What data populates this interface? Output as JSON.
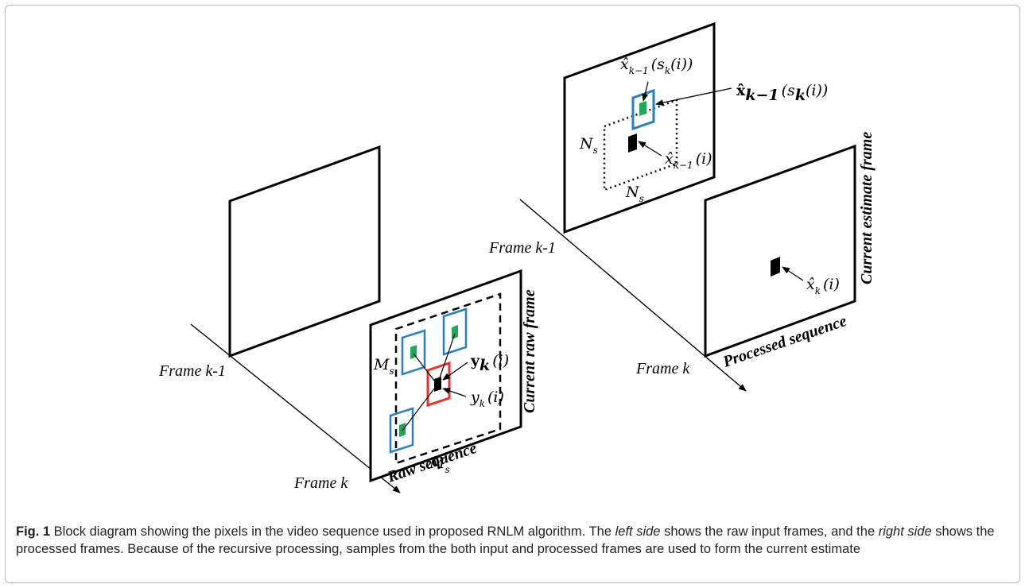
{
  "left": {
    "frame_prev_label": "Frame k-1",
    "frame_curr_label": "Frame k",
    "current_label": "Current raw frame",
    "sequence_label": "Raw sequence",
    "window_h_label": "M",
    "window_h_sub": "s",
    "window_w_label": "M",
    "window_w_sub": "s",
    "patch_label_main": "y",
    "patch_label_sub": "k",
    "patch_label_arg": "(i)",
    "pixel_label_main": "y",
    "pixel_label_sub": "k",
    "pixel_label_arg": "(i)"
  },
  "right": {
    "frame_prev_label": "Frame k-1",
    "frame_curr_label": "Frame k",
    "current_label": "Current estimate frame",
    "sequence_label": "Processed sequence",
    "window_h_label": "N",
    "window_h_sub": "s",
    "window_w_label": "N",
    "window_w_sub": "s",
    "top_label_main": "x̂",
    "top_label_sub": "k−1",
    "top_label_arg": "(s",
    "top_label_arg_sub": "k",
    "top_label_arg_end": "(i))",
    "patch_label_main": "x̂",
    "patch_label_sub": "k−1",
    "patch_label_arg": "(s",
    "patch_label_arg_sub": "k",
    "patch_label_arg_end": "(i))",
    "pixel_prev_main": "x̂",
    "pixel_prev_sub": "k−1",
    "pixel_prev_arg": "(i)",
    "pixel_curr_main": "x̂",
    "pixel_curr_sub": "k",
    "pixel_curr_arg": "(i)"
  },
  "colors": {
    "search_patch": "#2a7fc1",
    "reference_patch": "#e8322a",
    "patch_center": "#1fa75a",
    "frame_stroke": "#000000"
  },
  "caption": {
    "fig_label": "Fig. 1",
    "text_1": " Block diagram showing the pixels in the video sequence used in proposed RNLM algorithm. The ",
    "em_1": "left side",
    "text_2": " shows the raw input frames, and the ",
    "em_2": "right side",
    "text_3": " shows the processed frames. Because of the recursive processing, samples from the both input and processed frames are used to form the current estimate"
  }
}
